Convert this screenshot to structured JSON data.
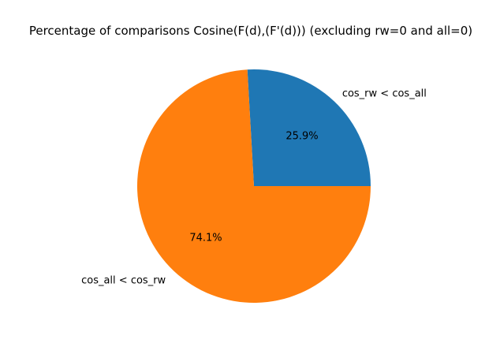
{
  "chart_data": {
    "type": "pie",
    "title": "Percentage of comparisons Cosine(F(d),(F'(d))) (excluding rw=0 and all=0)",
    "slices": [
      {
        "label": "cos_rw < cos_all",
        "value": 25.9,
        "pct_text": "25.9%",
        "color": "#1f77b4"
      },
      {
        "label": "cos_all < cos_rw",
        "value": 74.1,
        "pct_text": "74.1%",
        "color": "#ff7f0e"
      }
    ],
    "start_angle_deg": 0,
    "direction": "counterclockwise",
    "legend": "none"
  }
}
